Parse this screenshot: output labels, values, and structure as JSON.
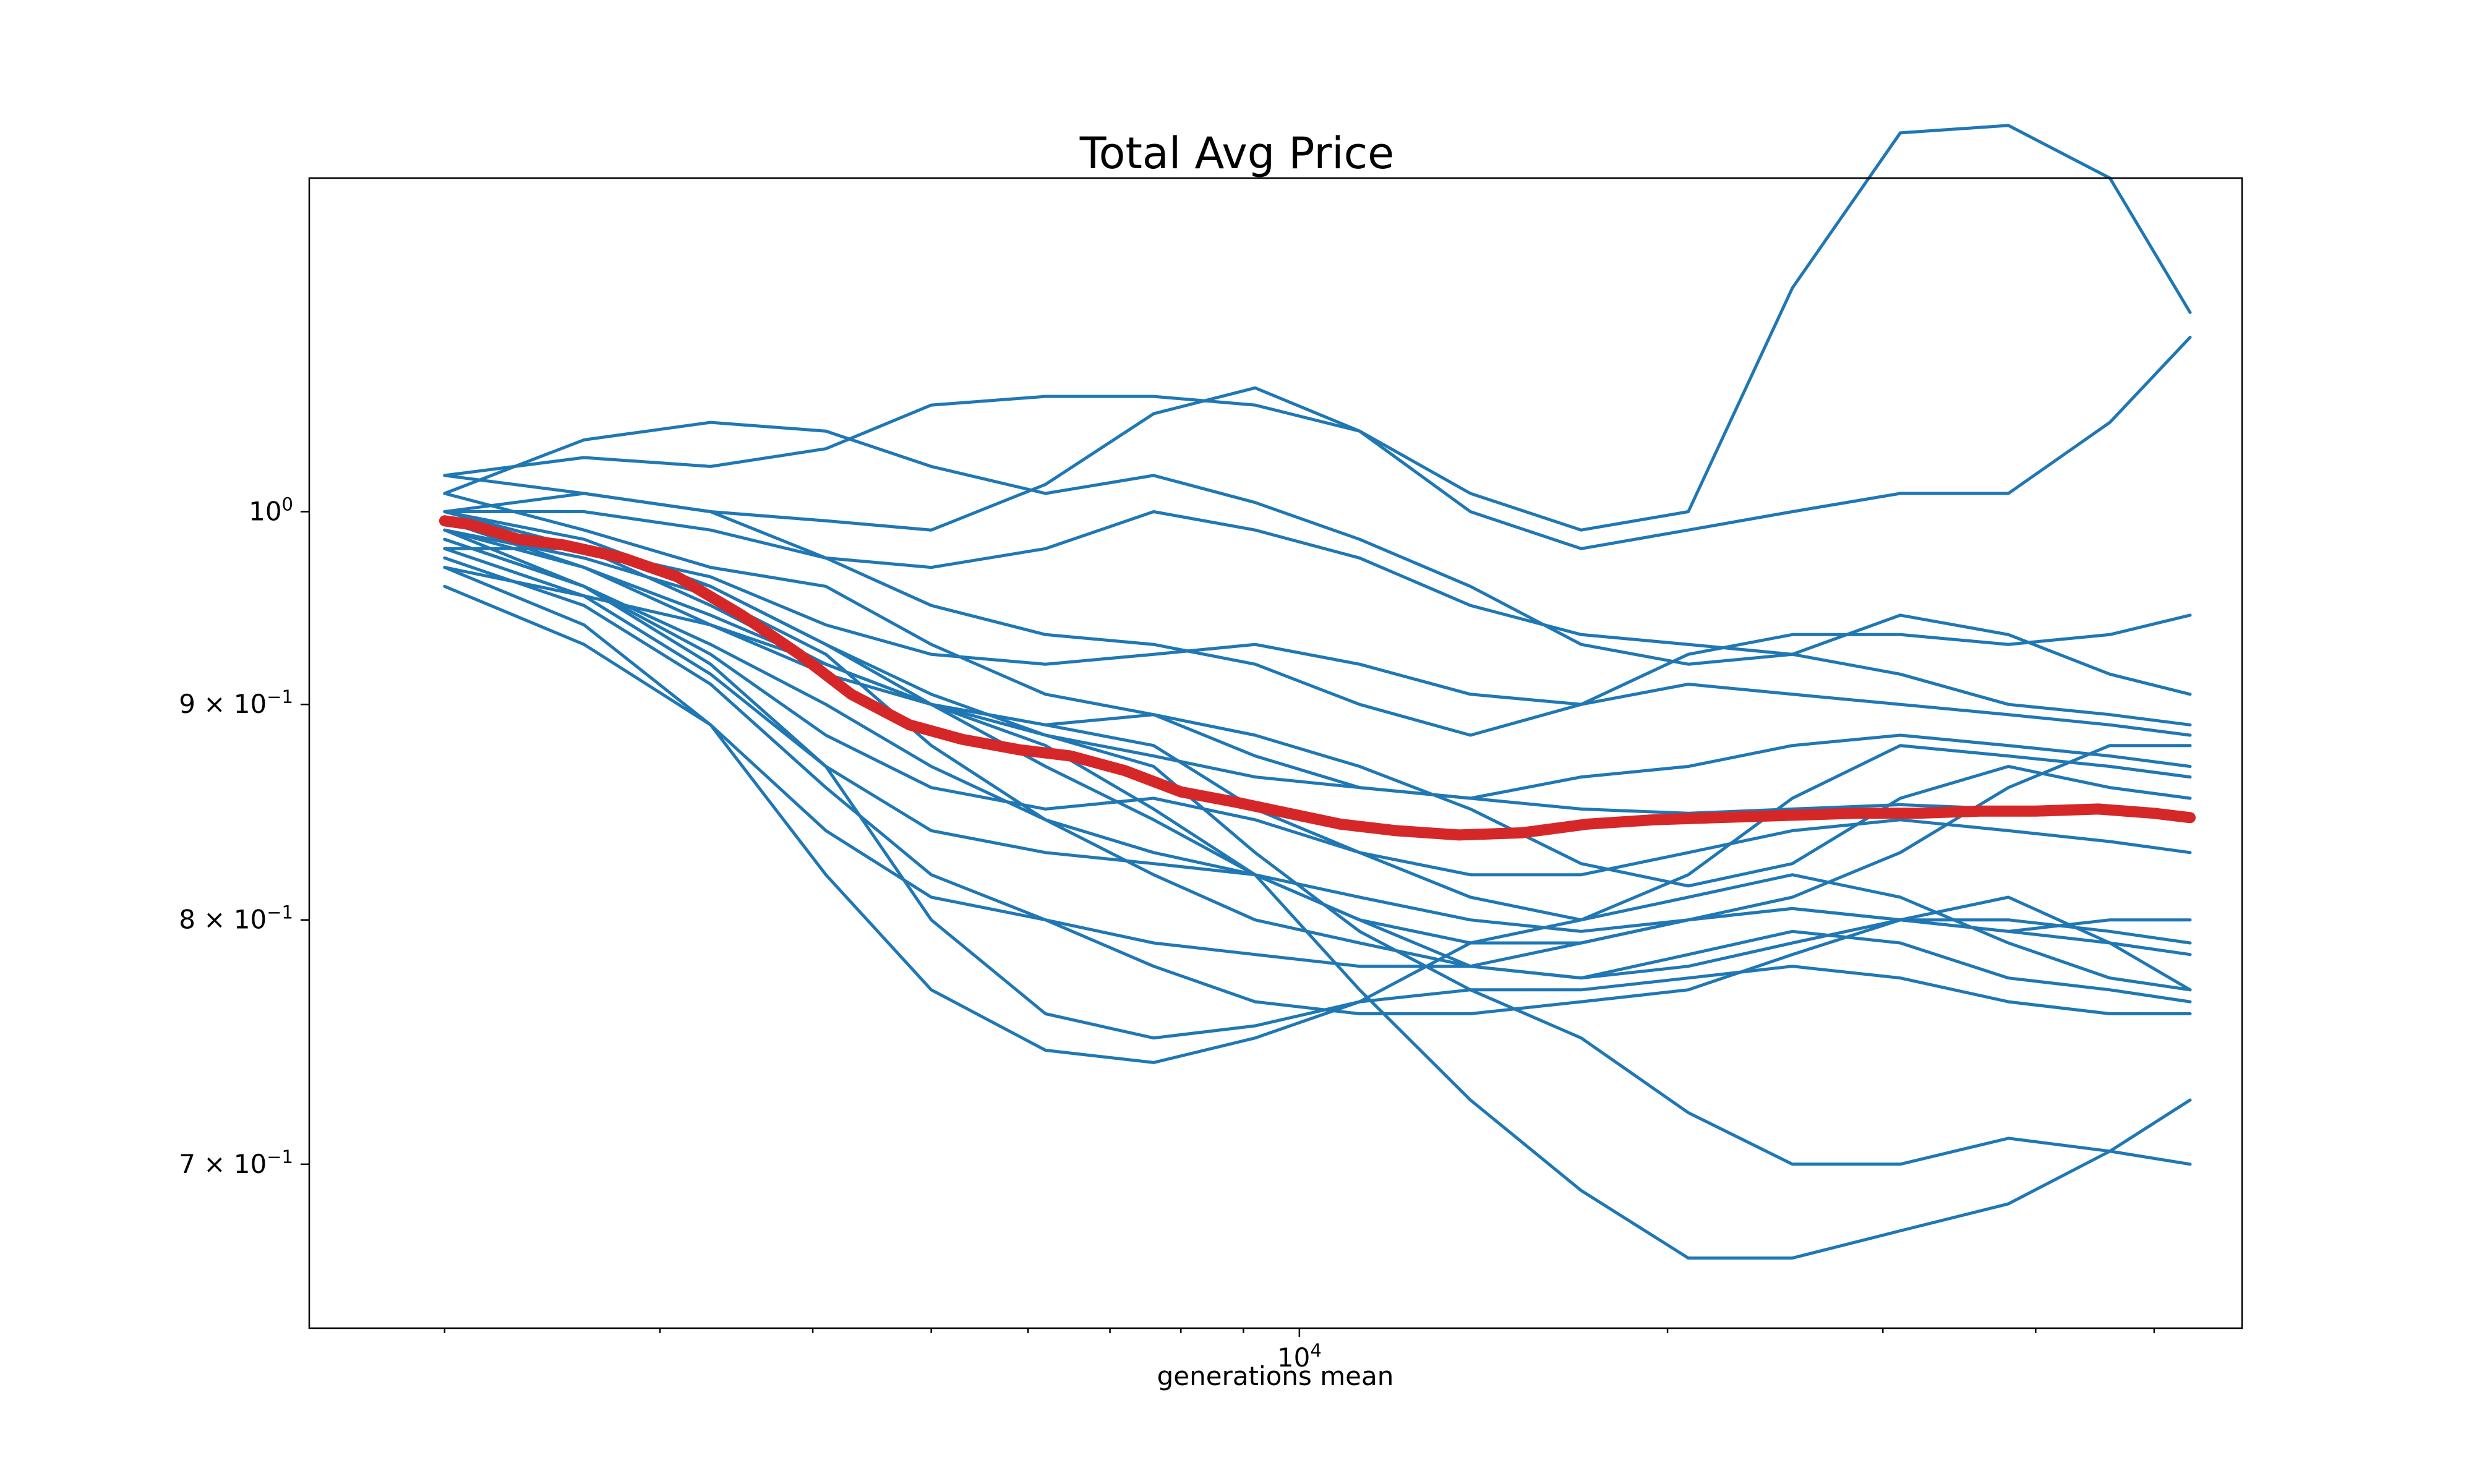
{
  "chart_data": {
    "type": "line",
    "title": "Total Avg Price",
    "xlabel": "generations mean",
    "ylabel": "",
    "x_scale": "log",
    "y_scale": "log",
    "xlim": [
      1550,
      59000
    ],
    "ylim": [
      0.64,
      1.2
    ],
    "grid": false,
    "legend": "none",
    "x_ticks": [
      {
        "value": 10000,
        "base": "10",
        "exp": "4"
      }
    ],
    "y_ticks": [
      {
        "value": 1.0,
        "mant": "",
        "base": "10",
        "exp": "0"
      },
      {
        "value": 0.9,
        "mant": "9",
        "base": "10",
        "exp": "−1"
      },
      {
        "value": 0.8,
        "mant": "8",
        "base": "10",
        "exp": "−1"
      },
      {
        "value": 0.7,
        "mant": "7",
        "base": "10",
        "exp": "−1"
      }
    ],
    "colors": {
      "runs": "#1f77b4",
      "mean": "#d62728"
    },
    "series_runs": [
      {
        "x": [
          2000,
          2600,
          3300,
          4100,
          5000,
          6200,
          7600,
          9200,
          11200,
          13800,
          17000,
          20800,
          25300,
          31000,
          38000,
          46000,
          53500
        ],
        "y": [
          1.02,
          1.01,
          1.0,
          0.995,
          0.99,
          1.015,
          1.055,
          1.07,
          1.045,
          1.01,
          0.99,
          1.0,
          1.13,
          1.23,
          1.235,
          1.2,
          1.115
        ]
      },
      {
        "x": [
          2000,
          2600,
          3300,
          4100,
          5000,
          6200,
          7600,
          9200,
          11200,
          13800,
          17000,
          20800,
          25300,
          31000,
          38000,
          46000,
          53500
        ],
        "y": [
          1.02,
          1.03,
          1.025,
          1.035,
          1.06,
          1.065,
          1.065,
          1.06,
          1.045,
          1.0,
          0.98,
          0.99,
          1.0,
          1.01,
          1.01,
          1.05,
          1.1
        ]
      },
      {
        "x": [
          2000,
          2600,
          3300,
          4100,
          5000,
          6200,
          7600,
          9200,
          11200,
          13800,
          17000,
          20800,
          25300,
          31000,
          38000,
          46000,
          53500
        ],
        "y": [
          1.01,
          1.04,
          1.05,
          1.045,
          1.025,
          1.01,
          1.02,
          1.005,
          0.985,
          0.96,
          0.93,
          0.92,
          0.925,
          0.945,
          0.935,
          0.915,
          0.905
        ]
      },
      {
        "x": [
          2000,
          2600,
          3300,
          4100,
          5000,
          6200,
          7600,
          9200,
          11200,
          13800,
          17000,
          20800,
          25300,
          31000,
          38000,
          46000,
          53500
        ],
        "y": [
          1.0,
          1.0,
          0.99,
          0.975,
          0.97,
          0.98,
          1.0,
          0.99,
          0.975,
          0.95,
          0.935,
          0.93,
          0.925,
          0.915,
          0.9,
          0.895,
          0.89
        ]
      },
      {
        "x": [
          2000,
          2600,
          3300,
          4100,
          5000,
          6200,
          7600,
          9200,
          11200,
          13800,
          17000,
          20800,
          25300,
          31000,
          38000,
          46000,
          53500
        ],
        "y": [
          1.0,
          1.01,
          1.0,
          0.975,
          0.95,
          0.935,
          0.93,
          0.92,
          0.9,
          0.885,
          0.9,
          0.925,
          0.935,
          0.935,
          0.93,
          0.935,
          0.945
        ]
      },
      {
        "x": [
          2000,
          2600,
          3300,
          4100,
          5000,
          6200,
          7600,
          9200,
          11200,
          13800,
          17000,
          20800,
          25300,
          31000,
          38000,
          46000,
          53500
        ],
        "y": [
          0.98,
          0.98,
          0.965,
          0.94,
          0.925,
          0.92,
          0.925,
          0.93,
          0.92,
          0.905,
          0.9,
          0.91,
          0.905,
          0.9,
          0.895,
          0.89,
          0.885
        ]
      },
      {
        "x": [
          2000,
          2600,
          3300,
          4100,
          5000,
          6200,
          7600,
          9200,
          11200,
          13800,
          17000,
          20800,
          25300,
          31000,
          38000,
          46000,
          53500
        ],
        "y": [
          1.01,
          0.99,
          0.97,
          0.96,
          0.93,
          0.905,
          0.895,
          0.875,
          0.86,
          0.855,
          0.865,
          0.87,
          0.88,
          0.885,
          0.88,
          0.875,
          0.87
        ]
      },
      {
        "x": [
          2000,
          2600,
          3300,
          4100,
          5000,
          6200,
          7600,
          9200,
          11200,
          13800,
          17000,
          20800,
          25300,
          31000,
          38000,
          46000,
          53500
        ],
        "y": [
          0.97,
          0.955,
          0.94,
          0.92,
          0.9,
          0.885,
          0.875,
          0.865,
          0.86,
          0.855,
          0.85,
          0.848,
          0.85,
          0.852,
          0.85,
          0.848,
          0.845
        ]
      },
      {
        "x": [
          2000,
          2600,
          3300,
          4100,
          5000,
          6200,
          7600,
          9200,
          11200,
          13800,
          17000,
          20800,
          25300,
          31000,
          38000,
          46000,
          53500
        ],
        "y": [
          0.99,
          0.97,
          0.94,
          0.915,
          0.9,
          0.89,
          0.88,
          0.85,
          0.83,
          0.82,
          0.82,
          0.83,
          0.84,
          0.845,
          0.84,
          0.835,
          0.83
        ]
      },
      {
        "x": [
          2000,
          2600,
          3300,
          4100,
          5000,
          6200,
          7600,
          9200,
          11200,
          13800,
          17000,
          20800,
          25300,
          31000,
          38000,
          46000,
          53500
        ],
        "y": [
          1.0,
          0.98,
          0.95,
          0.92,
          0.9,
          0.89,
          0.895,
          0.885,
          0.87,
          0.85,
          0.825,
          0.815,
          0.825,
          0.855,
          0.87,
          0.86,
          0.855
        ]
      },
      {
        "x": [
          2000,
          2600,
          3300,
          4100,
          5000,
          6200,
          7600,
          9200,
          11200,
          13800,
          17000,
          20800,
          25300,
          31000,
          38000,
          46000,
          53500
        ],
        "y": [
          0.99,
          0.96,
          0.925,
          0.885,
          0.86,
          0.85,
          0.855,
          0.845,
          0.83,
          0.81,
          0.8,
          0.82,
          0.855,
          0.88,
          0.875,
          0.87,
          0.865
        ]
      },
      {
        "x": [
          2000,
          2600,
          3300,
          4100,
          5000,
          6200,
          7600,
          9200,
          11200,
          13800,
          17000,
          20800,
          25300,
          31000,
          38000,
          46000,
          53500
        ],
        "y": [
          0.985,
          0.96,
          0.93,
          0.9,
          0.87,
          0.845,
          0.83,
          0.82,
          0.81,
          0.8,
          0.795,
          0.8,
          0.81,
          0.83,
          0.86,
          0.88,
          0.88
        ]
      },
      {
        "x": [
          2000,
          2600,
          3300,
          4100,
          5000,
          6200,
          7600,
          9200,
          11200,
          13800,
          17000,
          20800,
          25300,
          31000,
          38000,
          46000,
          53500
        ],
        "y": [
          1.0,
          0.98,
          0.96,
          0.93,
          0.9,
          0.87,
          0.845,
          0.82,
          0.8,
          0.79,
          0.79,
          0.8,
          0.805,
          0.8,
          0.795,
          0.79,
          0.785
        ]
      },
      {
        "x": [
          2000,
          2600,
          3300,
          4100,
          5000,
          6200,
          7600,
          9200,
          11200,
          13800,
          17000,
          20800,
          25300,
          31000,
          38000,
          46000,
          53500
        ],
        "y": [
          0.99,
          0.975,
          0.955,
          0.925,
          0.88,
          0.845,
          0.82,
          0.8,
          0.79,
          0.78,
          0.775,
          0.78,
          0.79,
          0.8,
          0.8,
          0.795,
          0.79
        ]
      },
      {
        "x": [
          2000,
          2600,
          3300,
          4100,
          5000,
          6200,
          7600,
          9200,
          11200,
          13800,
          17000,
          20800,
          25300,
          31000,
          38000,
          46000,
          53500
        ],
        "y": [
          0.975,
          0.95,
          0.91,
          0.86,
          0.82,
          0.8,
          0.79,
          0.785,
          0.78,
          0.78,
          0.79,
          0.8,
          0.805,
          0.8,
          0.795,
          0.8,
          0.8
        ]
      },
      {
        "x": [
          2000,
          2600,
          3300,
          4100,
          5000,
          6200,
          7600,
          9200,
          11200,
          13800,
          17000,
          20800,
          25300,
          31000,
          38000,
          46000,
          53500
        ],
        "y": [
          0.96,
          0.93,
          0.89,
          0.84,
          0.81,
          0.8,
          0.78,
          0.765,
          0.76,
          0.76,
          0.765,
          0.77,
          0.785,
          0.8,
          0.81,
          0.79,
          0.77
        ]
      },
      {
        "x": [
          2000,
          2600,
          3300,
          4100,
          5000,
          6200,
          7600,
          9200,
          11200,
          13800,
          17000,
          20800,
          25300,
          31000,
          38000,
          46000,
          53500
        ],
        "y": [
          0.985,
          0.96,
          0.92,
          0.87,
          0.8,
          0.76,
          0.75,
          0.755,
          0.765,
          0.77,
          0.77,
          0.775,
          0.78,
          0.775,
          0.765,
          0.76,
          0.76
        ]
      },
      {
        "x": [
          2000,
          2600,
          3300,
          4100,
          5000,
          6200,
          7600,
          9200,
          11200,
          13800,
          17000,
          20800,
          25300,
          31000,
          38000,
          46000,
          53500
        ],
        "y": [
          0.97,
          0.94,
          0.89,
          0.82,
          0.77,
          0.745,
          0.74,
          0.75,
          0.765,
          0.79,
          0.8,
          0.81,
          0.82,
          0.81,
          0.79,
          0.775,
          0.77
        ]
      },
      {
        "x": [
          2000,
          2600,
          3300,
          4100,
          5000,
          6200,
          7600,
          9200,
          11200,
          13800,
          17000,
          20800,
          25300,
          31000,
          38000,
          46000,
          53500
        ],
        "y": [
          0.98,
          0.955,
          0.915,
          0.87,
          0.84,
          0.83,
          0.825,
          0.82,
          0.8,
          0.78,
          0.775,
          0.785,
          0.795,
          0.79,
          0.775,
          0.77,
          0.765
        ]
      },
      {
        "x": [
          2000,
          2600,
          3300,
          4100,
          5000,
          6200,
          7600,
          9200,
          11200,
          13800,
          17000,
          20800,
          25300,
          31000,
          38000,
          46000,
          53500
        ],
        "y": [
          1.0,
          0.985,
          0.96,
          0.93,
          0.905,
          0.885,
          0.87,
          0.83,
          0.795,
          0.77,
          0.75,
          0.72,
          0.7,
          0.7,
          0.71,
          0.705,
          0.7
        ]
      },
      {
        "x": [
          2000,
          2600,
          3300,
          4100,
          5000,
          6200,
          7600,
          9200,
          11200,
          13800,
          17000,
          20800,
          25300,
          31000,
          38000,
          46000,
          53500
        ],
        "y": [
          0.995,
          0.97,
          0.945,
          0.92,
          0.9,
          0.88,
          0.85,
          0.82,
          0.77,
          0.725,
          0.69,
          0.665,
          0.665,
          0.675,
          0.685,
          0.705,
          0.725
        ]
      }
    ],
    "series_mean": {
      "x": [
        2000,
        2100,
        2300,
        2500,
        2800,
        3100,
        3500,
        3900,
        4300,
        4800,
        5300,
        5900,
        6500,
        7200,
        8000,
        8900,
        9800,
        10800,
        12000,
        13500,
        15200,
        17200,
        19500,
        22000,
        25000,
        28500,
        32000,
        36000,
        40000,
        45000,
        50000,
        53500
      ],
      "y": [
        0.995,
        0.993,
        0.985,
        0.982,
        0.975,
        0.965,
        0.945,
        0.925,
        0.905,
        0.89,
        0.883,
        0.878,
        0.875,
        0.868,
        0.858,
        0.853,
        0.848,
        0.843,
        0.84,
        0.838,
        0.839,
        0.843,
        0.845,
        0.846,
        0.847,
        0.848,
        0.848,
        0.849,
        0.849,
        0.85,
        0.848,
        0.846
      ]
    }
  }
}
